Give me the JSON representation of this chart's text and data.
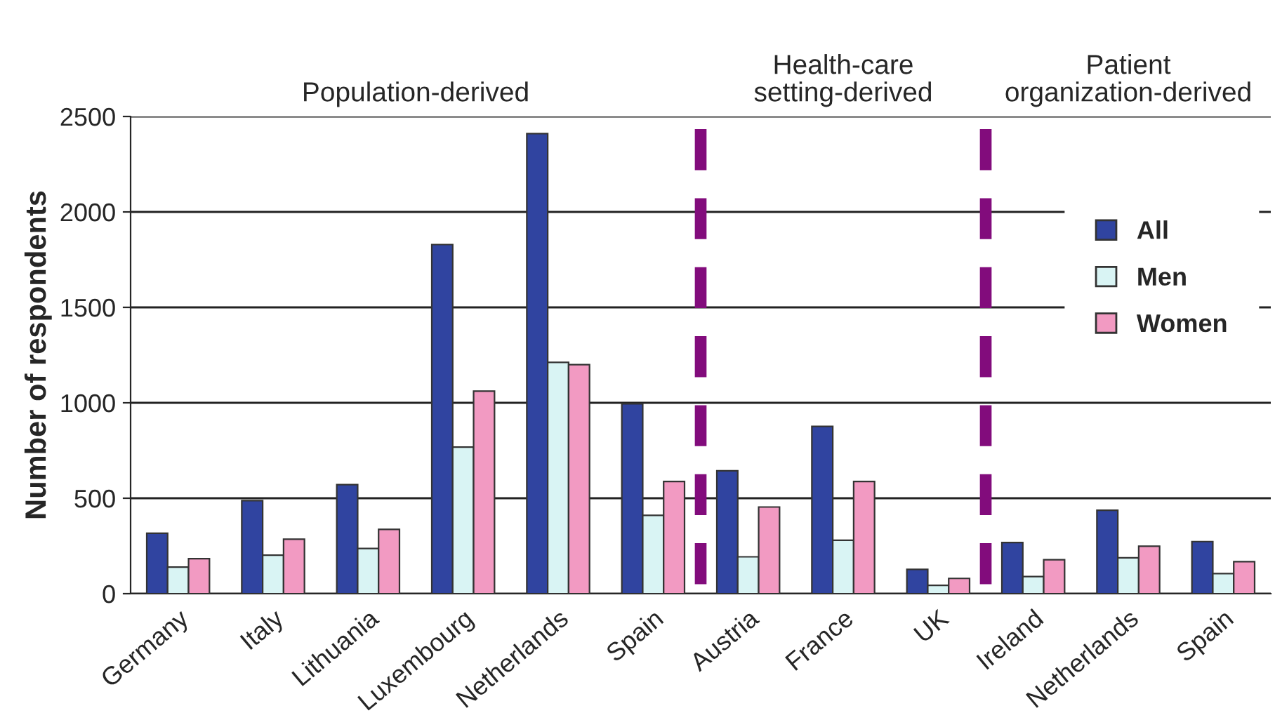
{
  "chart_data": {
    "type": "bar",
    "categories": [
      "Germany",
      "Italy",
      "Lithuania",
      "Luxembourg",
      "Netherlands",
      "Spain",
      "Austria",
      "France",
      "UK",
      "Ireland",
      "Netherlands",
      "Spain"
    ],
    "series": [
      {
        "name": "All",
        "color": "#3044a0",
        "values": [
          317,
          488,
          571,
          1829,
          2410,
          995,
          644,
          876,
          127,
          268,
          437,
          273
        ]
      },
      {
        "name": "Men",
        "color": "#d9f4f4",
        "values": [
          139,
          202,
          237,
          768,
          1212,
          410,
          193,
          280,
          44,
          90,
          188,
          105
        ]
      },
      {
        "name": "Women",
        "color": "#f29ac2",
        "values": [
          183,
          285,
          337,
          1061,
          1200,
          588,
          454,
          588,
          80,
          178,
          249,
          168
        ]
      }
    ],
    "ylabel": "Number of respondents",
    "ylim": [
      0,
      2500
    ],
    "yticks": [
      0,
      500,
      1000,
      1500,
      2000,
      2500
    ],
    "grid": "y",
    "legend": "right",
    "annotations": [
      "Population-derived",
      "Health-care\nsetting-derived",
      "Patient\norganization-derived"
    ]
  }
}
